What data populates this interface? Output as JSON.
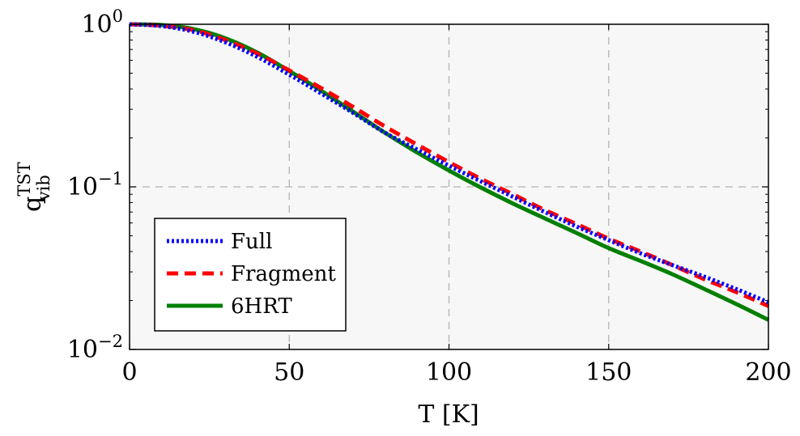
{
  "chart_data": {
    "type": "line",
    "title": "",
    "xlabel": "T [K]",
    "ylabel": {
      "base": "q",
      "sup": "TST",
      "sub": "vib"
    },
    "xlim": [
      0,
      200
    ],
    "ylim": [
      0.01,
      1
    ],
    "yscale": "log",
    "grid": true,
    "legend_position": "bottom-left",
    "x_ticks": [
      0,
      50,
      100,
      150,
      200
    ],
    "y_ticks": [
      {
        "value": 0.01,
        "base": "10",
        "exp": "−2"
      },
      {
        "value": 0.1,
        "base": "10",
        "exp": "−1"
      },
      {
        "value": 1,
        "base": "10",
        "exp": "0"
      }
    ],
    "x": [
      0,
      10,
      20,
      30,
      40,
      50,
      60,
      70,
      80,
      90,
      100,
      110,
      120,
      130,
      140,
      150,
      160,
      170,
      180,
      190,
      200
    ],
    "series": [
      {
        "name": "Full",
        "color": "#0000ff",
        "style": "dotted",
        "values": [
          1.0,
          0.975,
          0.9,
          0.775,
          0.63,
          0.49,
          0.375,
          0.285,
          0.215,
          0.17,
          0.135,
          0.108,
          0.087,
          0.07,
          0.057,
          0.047,
          0.039,
          0.033,
          0.028,
          0.0235,
          0.0195
        ]
      },
      {
        "name": "Fragment",
        "color": "#ff0000",
        "style": "dashed",
        "values": [
          1.0,
          0.98,
          0.92,
          0.8,
          0.66,
          0.52,
          0.405,
          0.31,
          0.235,
          0.182,
          0.142,
          0.112,
          0.09,
          0.072,
          0.059,
          0.048,
          0.04,
          0.033,
          0.027,
          0.0225,
          0.0185
        ]
      },
      {
        "name": "6HRT",
        "color": "#007f00",
        "style": "solid",
        "values": [
          1.0,
          0.99,
          0.935,
          0.82,
          0.67,
          0.515,
          0.39,
          0.29,
          0.215,
          0.163,
          0.126,
          0.099,
          0.079,
          0.064,
          0.052,
          0.042,
          0.035,
          0.029,
          0.0235,
          0.019,
          0.0152
        ]
      }
    ]
  }
}
